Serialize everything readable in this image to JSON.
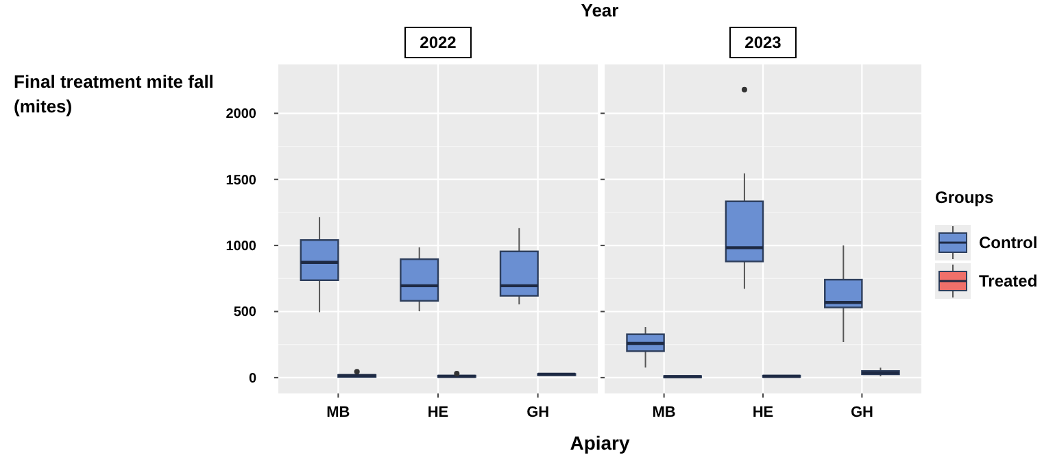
{
  "chart_data": [
    {
      "type": "box",
      "title": "Year",
      "subtitle": "2022",
      "ylabel": "Final treatment mite fall\n(mites)",
      "xlabel": "Apiary",
      "categories": [
        "MB",
        "HE",
        "GH"
      ],
      "ylim": [
        -120,
        2370
      ],
      "yticks": [
        0,
        500,
        1000,
        1500,
        2000
      ],
      "grid": true,
      "legend": false,
      "series": [
        {
          "color": "#6a8fd2",
          "boxes": [
            {
              "low": 495,
              "q1": 737,
              "median": 872,
              "q3": 1041,
              "high": 1214
            },
            {
              "low": 502,
              "q1": 581,
              "median": 695,
              "q3": 896,
              "high": 986
            },
            {
              "low": 554,
              "q1": 619,
              "median": 695,
              "q3": 955,
              "high": 1131
            }
          ]
        },
        {
          "color": "#f0706a",
          "boxes": [
            {
              "low": 0,
              "q1": 5,
              "median": 15,
              "q3": 20,
              "high": 30,
              "outliers": [
                45
              ]
            },
            {
              "low": 0,
              "q1": 5,
              "median": 10,
              "q3": 15,
              "high": 20,
              "outliers": [
                30
              ]
            },
            {
              "low": 15,
              "q1": 20,
              "median": 25,
              "q3": 28,
              "high": 35
            }
          ]
        }
      ]
    },
    {
      "type": "box",
      "subtitle": "2023",
      "categories": [
        "MB",
        "HE",
        "GH"
      ],
      "ylim": [
        -120,
        2370
      ],
      "yticks": [
        0,
        500,
        1000,
        1500,
        2000
      ],
      "grid": true,
      "legend": "right",
      "legend_title": "Groups",
      "tick_labels": "x",
      "series": [
        {
          "name": "Control",
          "color": "#6a8fd2",
          "boxes": [
            {
              "low": 76,
              "q1": 200,
              "median": 259,
              "q3": 328,
              "high": 383
            },
            {
              "low": 672,
              "q1": 879,
              "median": 983,
              "q3": 1334,
              "high": 1545,
              "outliers": [
                2180
              ]
            },
            {
              "low": 269,
              "q1": 531,
              "median": 569,
              "q3": 741,
              "high": 1000
            }
          ]
        },
        {
          "name": "Treated",
          "color": "#f0706a",
          "boxes": [
            {
              "low": 0,
              "q1": 3,
              "median": 8,
              "q3": 12,
              "high": 15
            },
            {
              "low": 0,
              "q1": 5,
              "median": 10,
              "q3": 15,
              "high": 20
            },
            {
              "low": 10,
              "q1": 25,
              "median": 35,
              "q3": 50,
              "high": 75
            }
          ]
        }
      ]
    }
  ]
}
